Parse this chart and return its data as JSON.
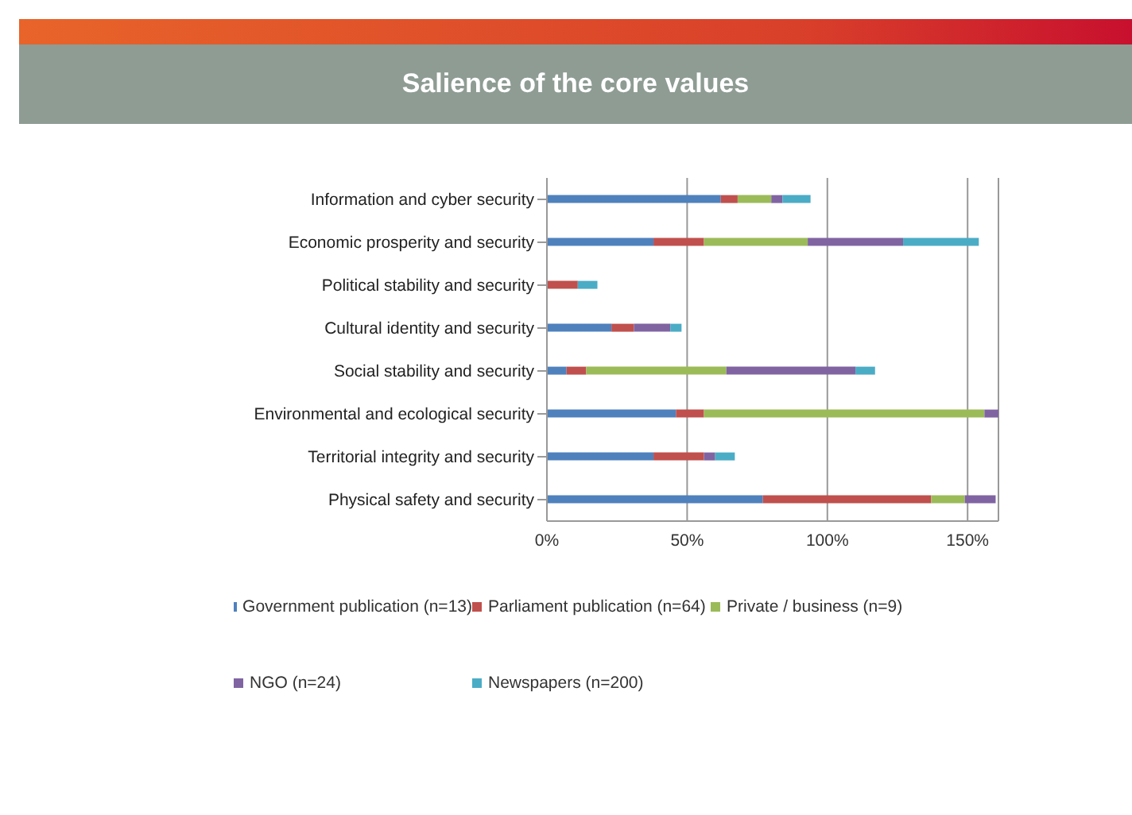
{
  "chart_data": {
    "type": "bar",
    "title": "Salience of the core values",
    "orientation": "horizontal",
    "stacked": true,
    "categories": [
      "Information and cyber security",
      "Economic prosperity and security",
      "Political stability and security",
      "Cultural identity and security",
      "Social stability and security",
      "Environmental and ecological security",
      "Territorial integrity and security",
      "Physical safety and security"
    ],
    "series": [
      {
        "name": "Government publication (n=13)",
        "color": "#4f81bd",
        "values": [
          62,
          38,
          0,
          23,
          7,
          46,
          38,
          77
        ]
      },
      {
        "name": "Parliament publication (n=64)",
        "color": "#c0504d",
        "values": [
          6,
          18,
          11,
          8,
          7,
          10,
          18,
          60
        ]
      },
      {
        "name": "Private / business (n=9)",
        "color": "#9bbb59",
        "values": [
          12,
          37,
          0,
          0,
          50,
          100,
          0,
          12
        ]
      },
      {
        "name": "NGO (n=24)",
        "color": "#8064a2",
        "values": [
          4,
          34,
          0,
          13,
          46,
          5,
          4,
          11
        ]
      },
      {
        "name": "Newspapers (n=200)",
        "color": "#4bacc6",
        "values": [
          10,
          27,
          7,
          4,
          7,
          0,
          7,
          0
        ]
      }
    ],
    "xlim": [
      0,
      161
    ],
    "xticks": [
      {
        "value": 0,
        "label": "0%"
      },
      {
        "value": 50,
        "label": "50%"
      },
      {
        "value": 100,
        "label": "100%"
      },
      {
        "value": 150,
        "label": "150%"
      }
    ],
    "grid": "x",
    "legend": "bottom"
  }
}
